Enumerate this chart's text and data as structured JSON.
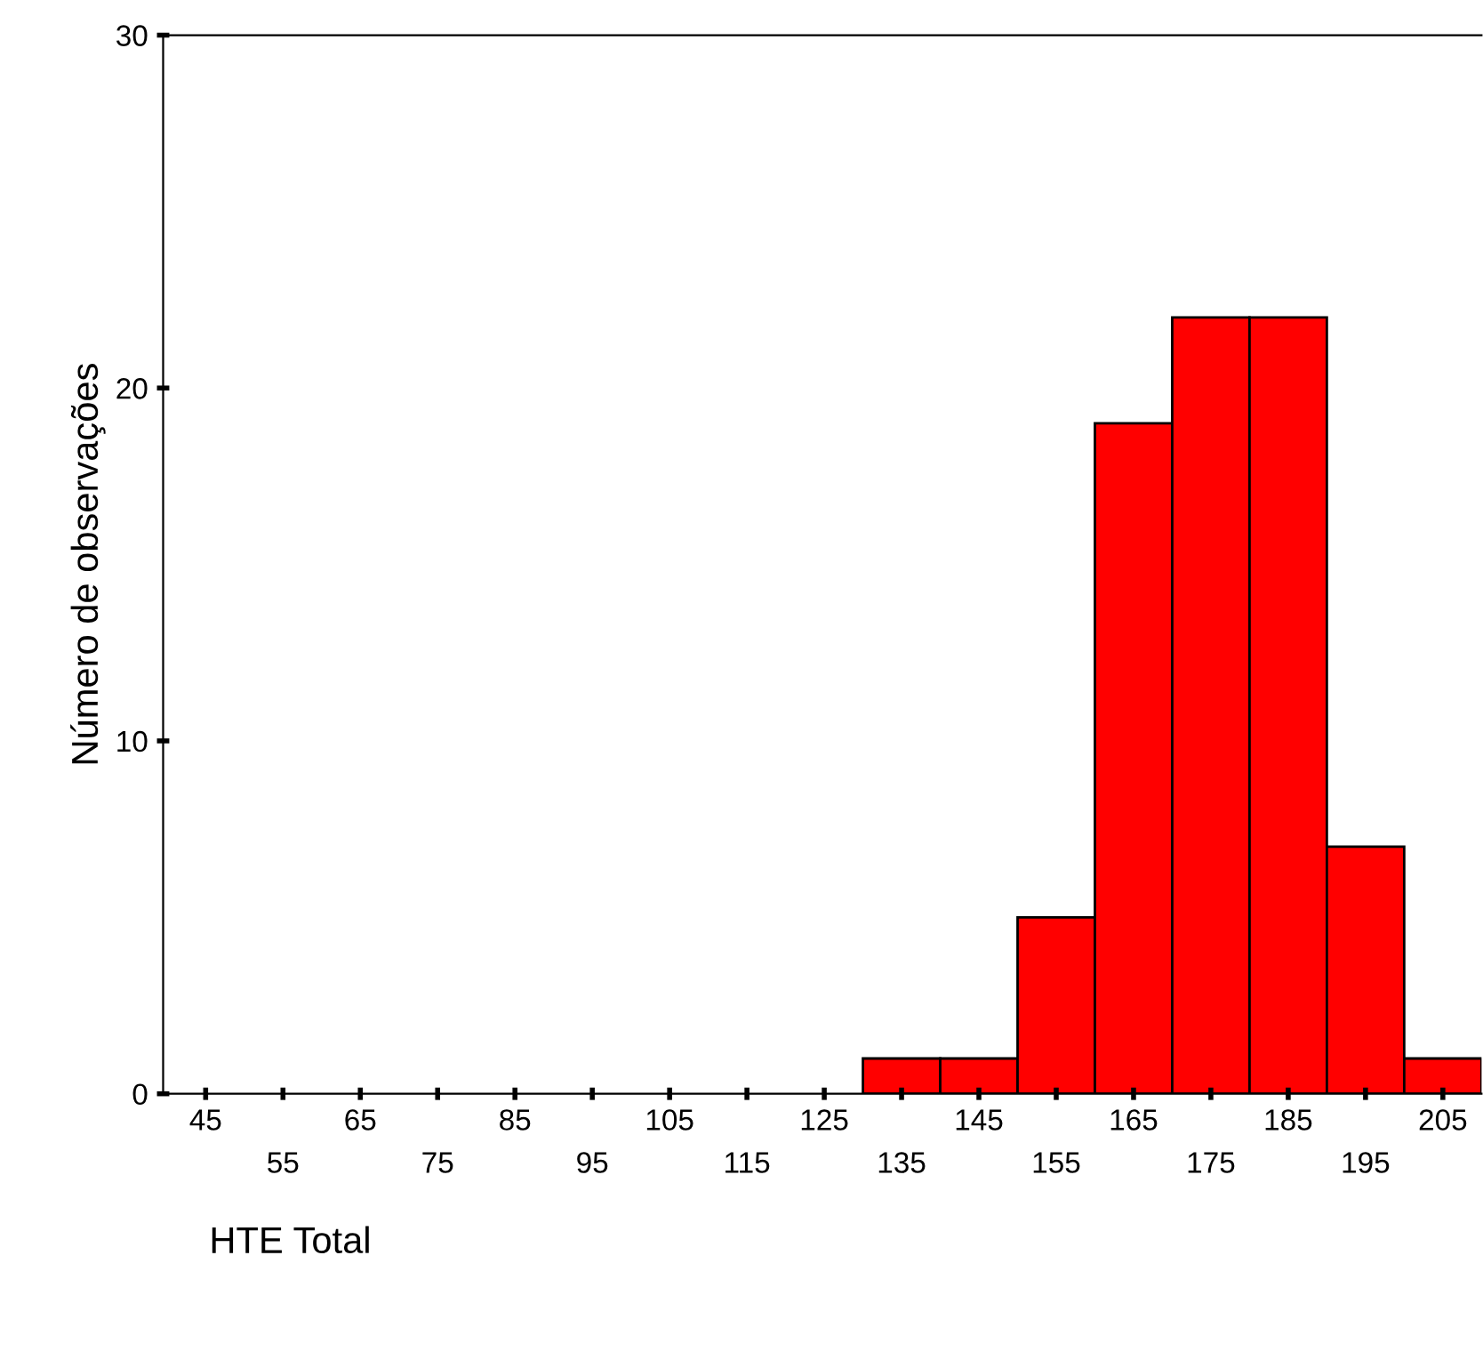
{
  "chart_data": {
    "type": "histogram",
    "xlabel": "HTE Total",
    "ylabel": "Número de observações",
    "bins": [
      130,
      140,
      150,
      160,
      170,
      180,
      190,
      200,
      210
    ],
    "values": [
      1,
      1,
      5,
      19,
      22,
      22,
      7,
      1
    ],
    "color": "#ff0000",
    "xlim": [
      39.5,
      210
    ],
    "xticks": [
      45,
      {
        "value": 55,
        "label": null
      },
      65,
      {
        "value": 75,
        "label": null
      },
      85,
      {
        "value": 95,
        "label": null
      },
      105,
      {
        "value": 115,
        "label": null
      },
      125,
      {
        "value": 135,
        "label": null
      },
      145,
      {
        "value": 155,
        "label": null
      },
      165,
      {
        "value": 175,
        "label": null
      },
      185,
      {
        "value": 195,
        "label": null
      },
      205
    ],
    "x2lim": [
      39.5,
      210
    ],
    "x2ticks": [
      55,
      75,
      95,
      115,
      135,
      155,
      175,
      195
    ],
    "ylim": [
      0,
      30
    ],
    "yticks": [
      0,
      10,
      20,
      30
    ],
    "grid": false,
    "legend": false
  }
}
